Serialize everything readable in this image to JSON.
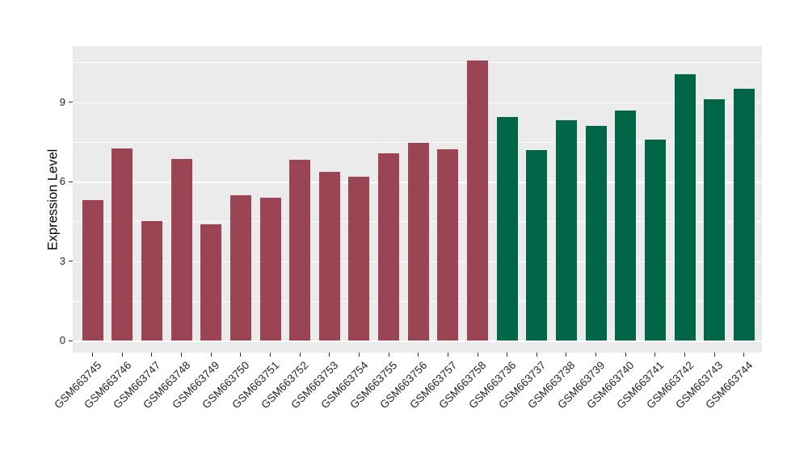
{
  "figure": {
    "background": "#FFFFFF"
  },
  "chart_data": {
    "type": "bar",
    "title": "",
    "xlabel": "",
    "ylabel": "Expression Level",
    "categories": [
      "GSM663745",
      "GSM663746",
      "GSM663747",
      "GSM663748",
      "GSM663749",
      "GSM663750",
      "GSM663751",
      "GSM663752",
      "GSM663753",
      "GSM663754",
      "GSM663755",
      "GSM663756",
      "GSM663757",
      "GSM663758",
      "GSM663736",
      "GSM663737",
      "GSM663738",
      "GSM663739",
      "GSM663740",
      "GSM663741",
      "GSM663742",
      "GSM663743",
      "GSM663744"
    ],
    "values": [
      5.3,
      7.26,
      4.5,
      6.85,
      4.4,
      5.5,
      5.41,
      6.82,
      6.37,
      6.19,
      7.07,
      7.48,
      7.23,
      10.58,
      8.44,
      7.2,
      8.33,
      8.09,
      8.67,
      7.58,
      10.06,
      9.1,
      9.52
    ],
    "groups": [
      0,
      0,
      0,
      0,
      0,
      0,
      0,
      0,
      0,
      0,
      0,
      0,
      0,
      0,
      1,
      1,
      1,
      1,
      1,
      1,
      1,
      1,
      1
    ],
    "group_colors": [
      "#9B4453",
      "#006647"
    ],
    "yticks": [
      0,
      3,
      6,
      9
    ],
    "yticks_minor": [
      1.5,
      4.5,
      7.5,
      10.5
    ],
    "ylim": [
      0,
      11.12
    ],
    "x_label_angle": 45,
    "legend": "none",
    "grid": "major-and-minor-horizontal",
    "panel_background": "#EBEBEB",
    "gridline_color": "#FFFFFF",
    "axis_text_color": "#262626"
  }
}
